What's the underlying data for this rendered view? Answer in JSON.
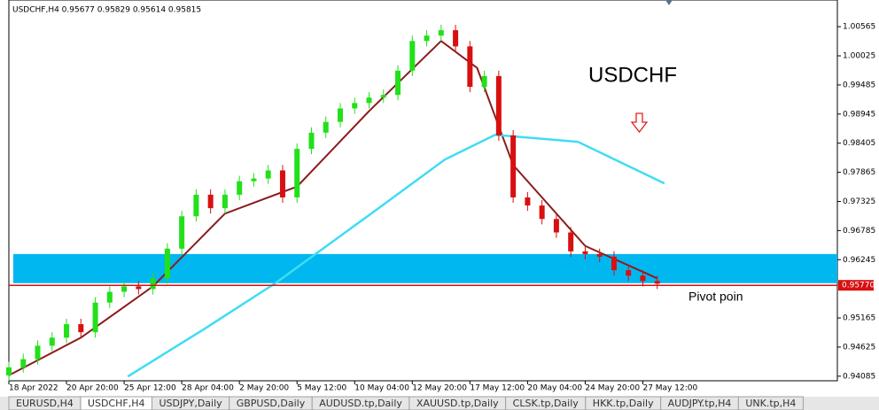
{
  "chart_data": {
    "type": "candlestick",
    "title": "USDCHF,H4  0.95677 0.95829 0.95614 0.95815",
    "annotation": "USDCHF",
    "zone_label": "Pivot poin",
    "x": [
      0,
      4,
      8,
      12,
      16,
      20,
      24,
      28,
      32,
      36,
      40,
      44,
      48,
      52,
      56,
      60,
      64,
      68,
      72,
      76,
      80,
      84,
      88,
      92,
      96,
      100,
      104,
      108,
      112,
      116,
      120,
      124,
      128,
      132,
      136,
      140,
      144,
      148,
      152,
      156,
      160,
      164,
      168,
      172,
      176,
      180
    ],
    "open": [
      0.941,
      0.9425,
      0.944,
      0.9465,
      0.948,
      0.9505,
      0.949,
      0.9545,
      0.9565,
      0.9575,
      0.957,
      0.959,
      0.9645,
      0.9705,
      0.9745,
      0.972,
      0.9745,
      0.977,
      0.9775,
      0.979,
      0.974,
      0.983,
      0.986,
      0.988,
      0.9905,
      0.9915,
      0.9925,
      0.993,
      0.9975,
      1.003,
      1.004,
      1.005,
      1.002,
      0.9945,
      0.9965,
      0.9855,
      0.974,
      0.9725,
      0.97,
      0.9675,
      0.964,
      0.9635,
      0.963,
      0.9605,
      0.9595,
      0.9585
    ],
    "high": [
      0.9435,
      0.945,
      0.9475,
      0.949,
      0.9515,
      0.9515,
      0.9555,
      0.9575,
      0.9585,
      0.9585,
      0.96,
      0.9655,
      0.9715,
      0.9755,
      0.9755,
      0.9755,
      0.978,
      0.9785,
      0.98,
      0.98,
      0.984,
      0.987,
      0.989,
      0.9915,
      0.9925,
      0.9935,
      0.994,
      0.9985,
      1.004,
      1.005,
      1.006,
      1.006,
      1.003,
      0.9975,
      0.9975,
      0.9865,
      0.975,
      0.9735,
      0.971,
      0.9685,
      0.965,
      0.9645,
      0.964,
      0.9615,
      0.9605,
      0.9595
    ],
    "low": [
      0.94,
      0.9415,
      0.943,
      0.9455,
      0.947,
      0.948,
      0.948,
      0.9535,
      0.9555,
      0.956,
      0.956,
      0.958,
      0.9635,
      0.9695,
      0.971,
      0.971,
      0.9735,
      0.976,
      0.9765,
      0.973,
      0.973,
      0.982,
      0.985,
      0.987,
      0.9895,
      0.9905,
      0.9915,
      0.992,
      0.9965,
      1.002,
      1.003,
      1.001,
      0.9935,
      0.9935,
      0.9845,
      0.973,
      0.9715,
      0.969,
      0.9665,
      0.963,
      0.9625,
      0.962,
      0.9595,
      0.9585,
      0.9575,
      0.957
    ],
    "close": [
      0.9425,
      0.944,
      0.9465,
      0.948,
      0.9505,
      0.949,
      0.9545,
      0.9565,
      0.9575,
      0.957,
      0.959,
      0.9645,
      0.9705,
      0.9745,
      0.972,
      0.9745,
      0.977,
      0.9775,
      0.979,
      0.974,
      0.983,
      0.986,
      0.988,
      0.9905,
      0.9915,
      0.9925,
      0.993,
      0.9975,
      1.003,
      1.004,
      1.005,
      1.002,
      0.9945,
      0.9965,
      0.9855,
      0.974,
      0.9725,
      0.97,
      0.9675,
      0.964,
      0.9635,
      0.963,
      0.9605,
      0.9595,
      0.9585,
      0.958
    ],
    "up_color": "#22e01a",
    "down_color": "#d81010",
    "lines": [
      {
        "color": "#8b1c1c",
        "x": [
          0,
          20,
          40,
          60,
          80,
          100,
          120,
          130,
          140,
          160,
          180
        ],
        "values": [
          0.941,
          0.948,
          0.9575,
          0.971,
          0.976,
          0.99,
          1.003,
          0.998,
          0.98,
          0.965,
          0.959
        ]
      },
      {
        "color": "#3fdcf4",
        "x": [
          33,
          54,
          74,
          101,
          121,
          135,
          158,
          182
        ],
        "values": [
          0.9408,
          0.9495,
          0.9581,
          0.9712,
          0.981,
          0.9856,
          0.9843,
          0.9766
        ]
      }
    ],
    "zone": [
      0.9581,
      0.9635
    ],
    "zone_color": "#00b7f0",
    "price_line": {
      "value": 0.9577,
      "label": "0.95770"
    },
    "price_line_color": "#d81010",
    "xlim": [
      0,
      230
    ],
    "ylim": [
      0.94,
      1.0106
    ],
    "yticks": [
      1.00565,
      1.00025,
      0.99485,
      0.98945,
      0.98405,
      0.97865,
      0.97325,
      0.96785,
      0.96245,
      0.95165,
      0.94625,
      0.94085
    ],
    "xticks": [
      {
        "value": 0,
        "label": "18 Apr 2022"
      },
      {
        "value": 16,
        "label": "20 Apr 20:00"
      },
      {
        "value": 32,
        "label": "25 Apr 12:00"
      },
      {
        "value": 48,
        "label": "28 Apr 04:00"
      },
      {
        "value": 64,
        "label": "2 May 20:00"
      },
      {
        "value": 80,
        "label": "5 May 12:00"
      },
      {
        "value": 96,
        "label": "10 May 04:00"
      },
      {
        "value": 112,
        "label": "12 May 20:00"
      },
      {
        "value": 128,
        "label": "17 May 12:00"
      },
      {
        "value": 144,
        "label": "20 May 04:00"
      },
      {
        "value": 160,
        "label": "24 May 20:00"
      },
      {
        "value": 176,
        "label": "27 May 12:00"
      }
    ]
  },
  "tabs": [
    "EURUSD,H4",
    "USDCHF,H4",
    "USDJPY,Daily",
    "GBPUSD,Daily",
    "AUDUSD.tp,Daily",
    "XAUUSD.tp,Daily",
    "CLSK.tp,Daily",
    "HKK.tp,Daily",
    "AUDJPY.tp,H4",
    "UNK.tp,H4"
  ],
  "active_tab": 1
}
